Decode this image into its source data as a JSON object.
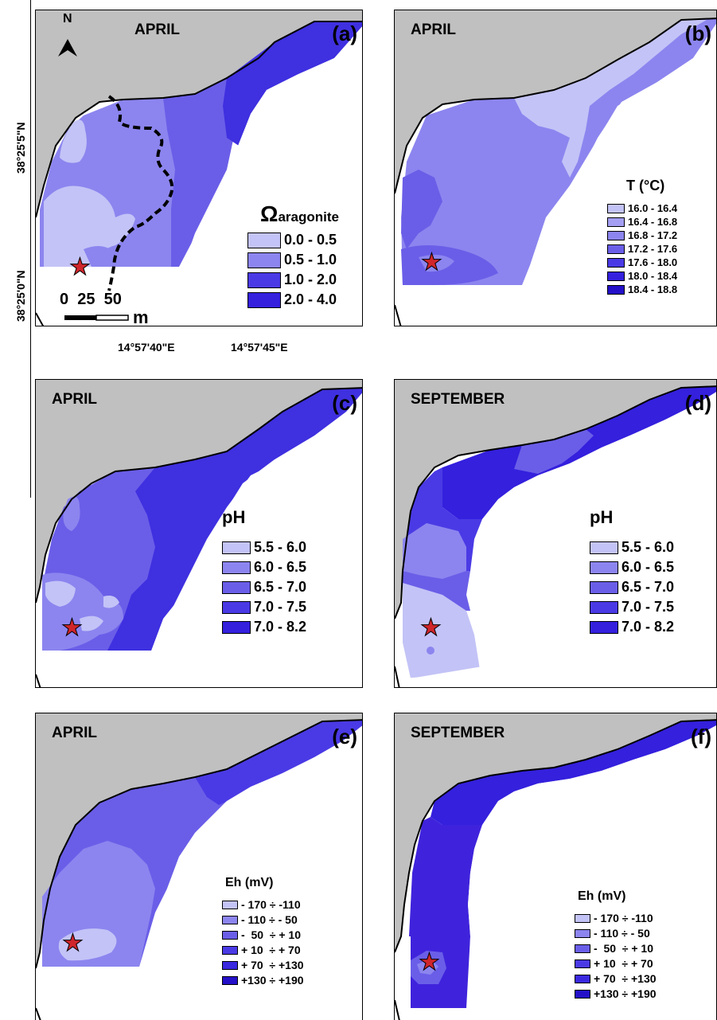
{
  "lat_labels": {
    "north": "38°25'5\"N",
    "south": "38°25'0\"N"
  },
  "lon_labels": {
    "west": "14°57'40\"E",
    "east": "14°57'45\"E"
  },
  "colors": {
    "land": "#c0c0c0",
    "c1": "#c3c3f7",
    "c2": "#8c85ef",
    "c3": "#6a5ee8",
    "c4": "#4a3ae5",
    "c5": "#3420dd",
    "star": "#d0252b"
  },
  "panel_a": {
    "month": "APRIL",
    "label": "(a)",
    "north_arrow": "N",
    "scale_numbers": "0  25  50",
    "scale_unit": "m",
    "legend_title_main": "Ω",
    "legend_title_sub": "aragonite",
    "legend": [
      "0.0 - 0.5",
      "0.5 - 1.0",
      "1.0 - 2.0",
      "2.0 - 4.0"
    ]
  },
  "panel_b": {
    "month": "APRIL",
    "label": "(b)",
    "legend_title": "T (°C)",
    "legend": [
      "16.0 - 16.4",
      "16.4 - 16.8",
      "16.8 - 17.2",
      "17.2 - 17.6",
      "17.6 - 18.0",
      "18.0 - 18.4",
      "18.4 - 18.8"
    ]
  },
  "panel_c": {
    "month": "APRIL",
    "label": "(c)",
    "legend_title": "pH",
    "legend": [
      "5.5 - 6.0",
      "6.0 - 6.5",
      "6.5 - 7.0",
      "7.0 - 7.5",
      "7.0 - 8.2"
    ]
  },
  "panel_d": {
    "month": "SEPTEMBER",
    "label": "(d)",
    "legend_title": "pH",
    "legend": [
      "5.5 - 6.0",
      "6.0 - 6.5",
      "6.5 - 7.0",
      "7.0 - 7.5",
      "7.0 - 8.2"
    ]
  },
  "panel_e": {
    "month": "APRIL",
    "label": "(e)",
    "legend_title": "Eh (mV)",
    "legend": [
      "- 170 ÷ -110",
      "- 110 ÷ - 50",
      "-  50  ÷ + 10",
      "+ 10  ÷ + 70",
      "+ 70  ÷ +130",
      "+130 ÷ +190"
    ]
  },
  "panel_f": {
    "month": "SEPTEMBER",
    "label": "(f)",
    "legend_title": "Eh (mV)",
    "legend": [
      "- 170 ÷ -110",
      "- 110 ÷ - 50",
      "-  50  ÷ + 10",
      "+ 10  ÷ + 70",
      "+ 70  ÷ +130",
      "+130 ÷ +190"
    ]
  },
  "star_glyph": "★"
}
